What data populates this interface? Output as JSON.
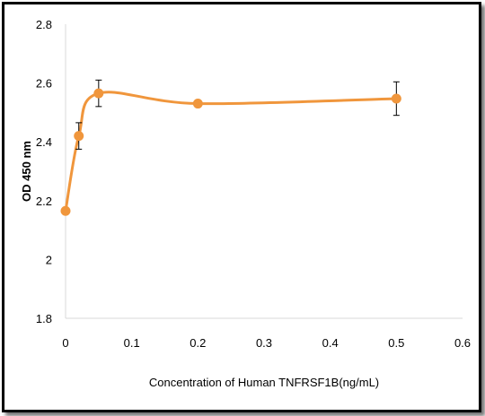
{
  "chart_data": {
    "type": "line",
    "title": "",
    "xlabel": "Concentration of Human TNFRSF1B(ng/mL)",
    "ylabel": "OD 450 nm",
    "xlim": [
      0,
      0.6
    ],
    "ylim": [
      1.8,
      2.8
    ],
    "x_ticks": [
      "0",
      "0.1",
      "0.2",
      "0.3",
      "0.4",
      "0.5",
      "0.6"
    ],
    "y_ticks": [
      "1.8",
      "2",
      "2.2",
      "2.4",
      "2.6",
      "2.8"
    ],
    "grid": false,
    "smooth": true,
    "series": [
      {
        "color": "#F0963C",
        "points": [
          {
            "x": 0,
            "y": 2.165,
            "err": 0
          },
          {
            "x": 0.02,
            "y": 2.42,
            "err": 0.045
          },
          {
            "x": 0.05,
            "y": 2.565,
            "err": 0.045
          },
          {
            "x": 0.2,
            "y": 2.53,
            "err": 0
          },
          {
            "x": 0.5,
            "y": 2.547,
            "err": 0.057
          }
        ]
      }
    ]
  }
}
